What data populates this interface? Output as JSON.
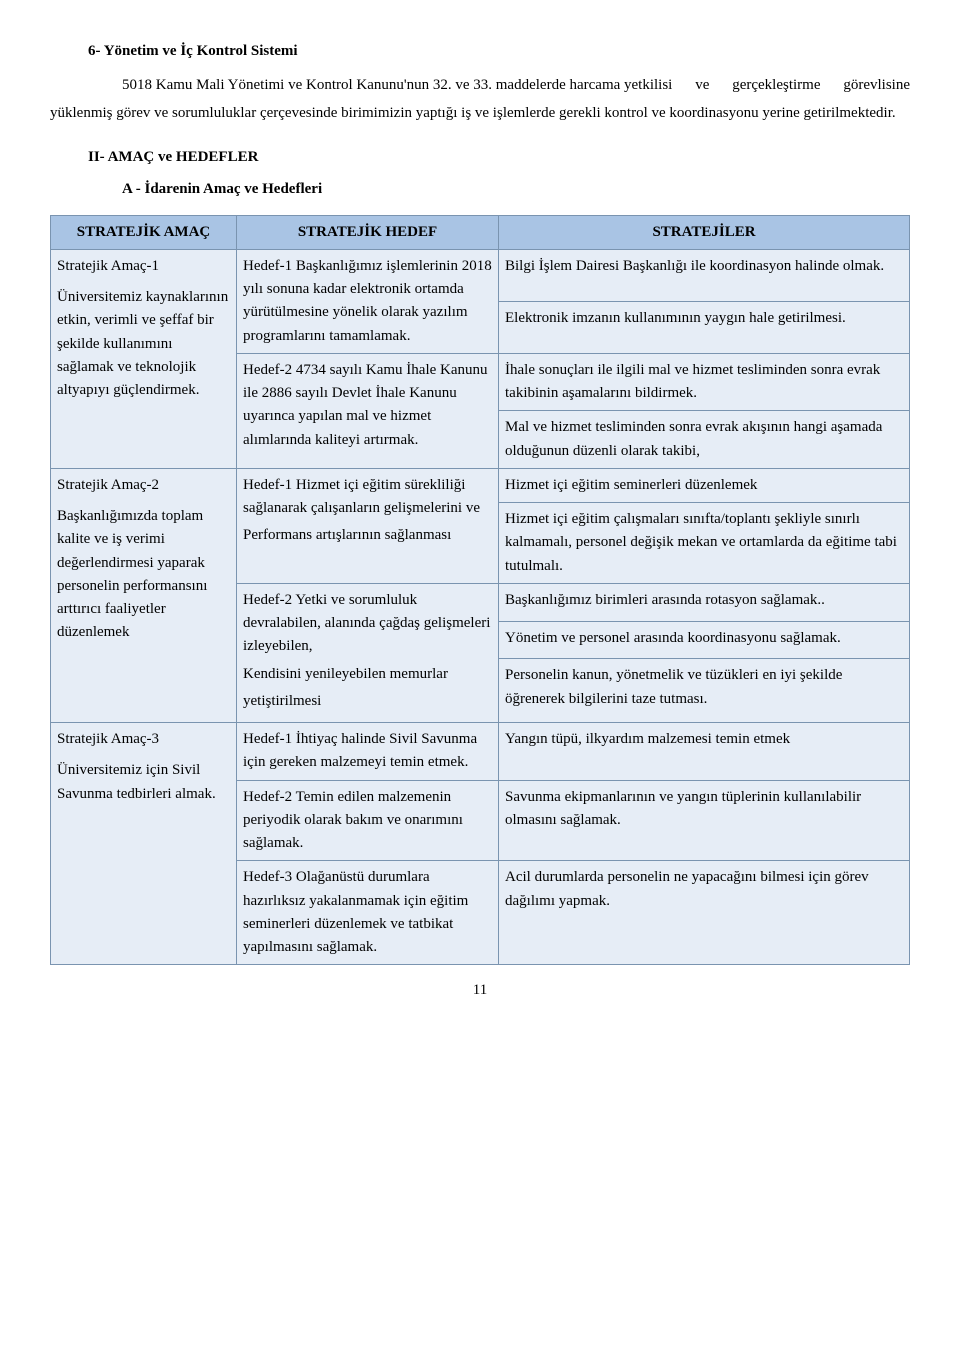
{
  "heading1": "6- Yönetim ve İç Kontrol Sistemi",
  "intro_lead": "5018 Kamu Mali Yönetimi ve Kontrol Kanunu'nun 32. ve 33. maddelerde harcama yetkilisi",
  "intro_rest": "ve gerçekleştirme görevlisine yüklenmiş görev ve sorumluluklar çerçevesinde birimimizin yaptığı iş ve işlemlerde gerekli kontrol ve koordinasyonu yerine getirilmektedir.",
  "section2": "II- AMAÇ ve HEDEFLER",
  "subsection": "A - İdarenin Amaç ve Hedefleri",
  "table": {
    "headers": [
      "STRATEJİK AMAÇ",
      "STRATEJİK HEDEF",
      "STRATEJİLER"
    ],
    "r1_amac_t": "Stratejik Amaç-1",
    "r1_amac_b": "Üniversitemiz kaynaklarının etkin, verimli ve şeffaf bir şekilde kullanımını sağlamak ve teknolojik altyapıyı güçlendirmek.",
    "r1_h1": "Hedef-1 Başkanlığımız işlemlerinin 2018 yılı sonuna kadar elektronik ortamda yürütülmesine yönelik olarak yazılım programlarını tamamlamak.",
    "r1_s1": "Bilgi İşlem Dairesi Başkanlığı ile koordinasyon halinde olmak.",
    "r1_s2": "Elektronik imzanın kullanımının yaygın hale getirilmesi.",
    "r1_h2": "Hedef-2 4734 sayılı Kamu İhale Kanunu ile 2886 sayılı Devlet İhale Kanunu uyarınca yapılan mal ve hizmet alımlarında kaliteyi artırmak.",
    "r1_s3": "İhale sonuçları ile ilgili mal ve hizmet tesliminden sonra evrak takibinin aşamalarını bildirmek.",
    "r1_s4": "Mal ve hizmet tesliminden sonra evrak akışının hangi aşamada olduğunun düzenli olarak takibi,",
    "r2_amac_t": "Stratejik Amaç-2",
    "r2_amac_b": "Başkanlığımızda toplam kalite ve iş verimi değerlendirmesi yaparak personelin performansını arttırıcı faaliyetler düzenlemek",
    "r2_h1a": "Hedef-1 Hizmet içi eğitim sürekliliği sağlanarak çalışanların gelişmelerini ve",
    "r2_h1b": "Performans artışlarının sağlanması",
    "r2_s1": "Hizmet içi eğitim seminerleri düzenlemek",
    "r2_s2": "Hizmet içi eğitim çalışmaları sınıfta/toplantı şekliyle sınırlı kalmamalı, personel değişik mekan ve ortamlarda da eğitime tabi tutulmalı.",
    "r2_h2a": "Hedef-2 Yetki ve sorumluluk devralabilen, alanında çağdaş gelişmeleri izleyebilen,",
    "r2_h2b": "Kendisini yenileyebilen memurlar",
    "r2_h2c": "yetiştirilmesi",
    "r2_s3": "Başkanlığımız birimleri arasında rotasyon sağlamak..",
    "r2_s4": "Yönetim ve personel arasında koordinasyonu sağlamak.",
    "r2_s5": "Personelin kanun, yönetmelik ve tüzükleri en iyi şekilde öğrenerek bilgilerini taze tutması.",
    "r3_amac_t": "Stratejik Amaç-3",
    "r3_amac_b": "Üniversitemiz için Sivil Savunma tedbirleri almak.",
    "r3_h1": "Hedef-1 İhtiyaç halinde Sivil Savunma için gereken malzemeyi temin etmek.",
    "r3_s1": "Yangın tüpü, ilkyardım malzemesi temin etmek",
    "r3_h2": "Hedef-2 Temin edilen malzemenin periyodik olarak bakım ve onarımını sağlamak.",
    "r3_s2": "Savunma ekipmanlarının ve yangın tüplerinin kullanılabilir olmasını sağlamak.",
    "r3_h3": "Hedef-3 Olağanüstü durumlara hazırlıksız yakalanmamak için eğitim seminerleri düzenlemek ve tatbikat yapılmasını sağlamak.",
    "r3_s3": "Acil durumlarda personelin ne yapacağını bilmesi için görev dağılımı yapmak."
  },
  "page_number": "11",
  "colors": {
    "header_bg": "#a9c4e4",
    "cell_bg": "#e6edf6",
    "border": "#7a94b0"
  }
}
